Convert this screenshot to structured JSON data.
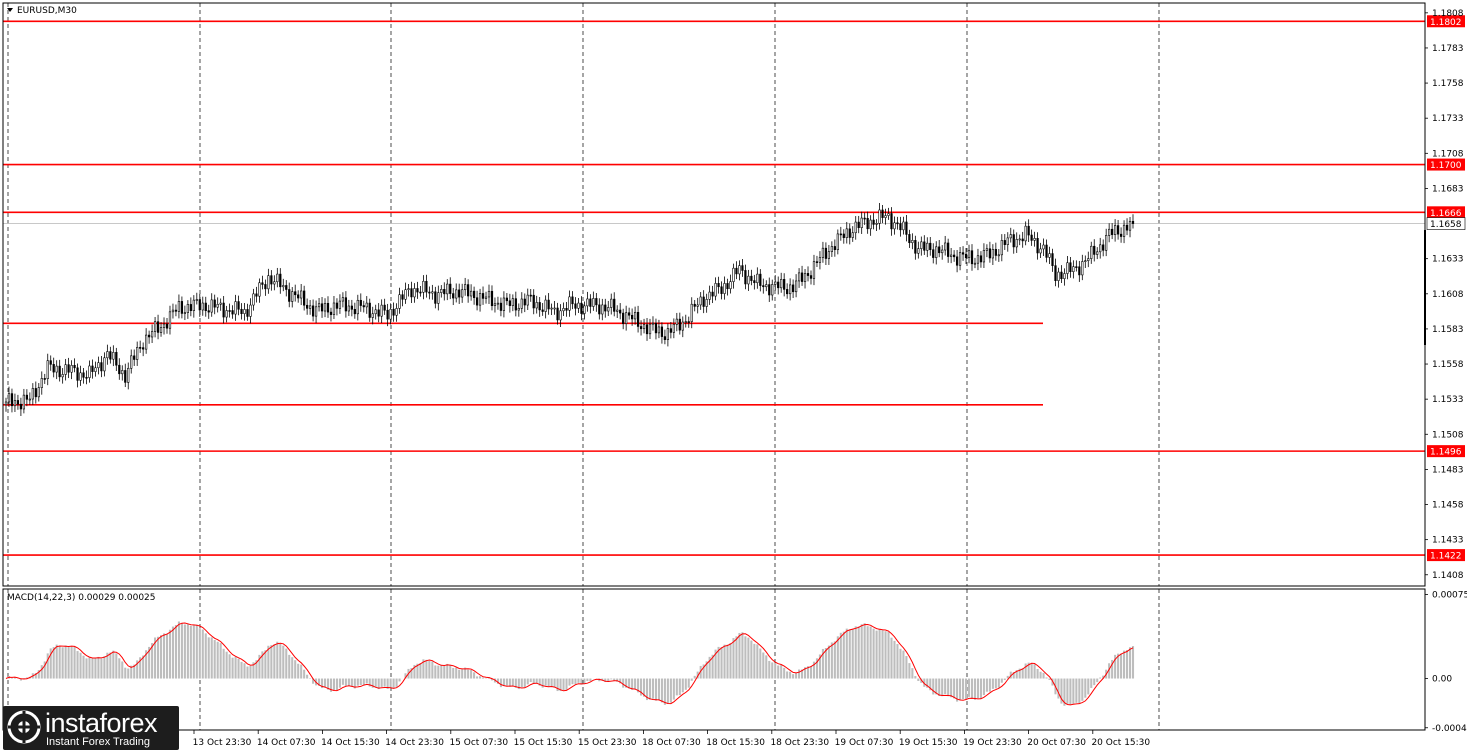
{
  "chart_data": {
    "type": "candlestick",
    "symbol_label": "EURUSD,M30",
    "price_axis": {
      "ticks": [
        "1.1808",
        "1.1783",
        "1.1758",
        "1.1733",
        "1.1708",
        "1.1683",
        "1.1633",
        "1.1608",
        "1.1583",
        "1.1558",
        "1.1533",
        "1.1508",
        "1.1483",
        "1.1458",
        "1.1433",
        "1.1408"
      ],
      "ylim": [
        1.14,
        1.1815
      ]
    },
    "time_axis_labels": [
      "13 Oct 23:30",
      "14 Oct 07:30",
      "14 Oct 15:30",
      "14 Oct 23:30",
      "15 Oct 07:30",
      "15 Oct 15:30",
      "15 Oct 23:30",
      "18 Oct 07:30",
      "18 Oct 15:30",
      "18 Oct 23:30",
      "19 Oct 07:30",
      "19 Oct 15:30",
      "19 Oct 23:30",
      "20 Oct 07:30",
      "20 Oct 15:30"
    ],
    "horizontal_levels": [
      {
        "price": 1.1802,
        "label": "1.1802",
        "full_width": true
      },
      {
        "price": 1.17,
        "label": "1.1700",
        "full_width": true
      },
      {
        "price": 1.1666,
        "label": "1.1666",
        "full_width": true
      },
      {
        "price": 1.1587,
        "label": "",
        "full_width": false
      },
      {
        "price": 1.1529,
        "label": "",
        "full_width": false
      },
      {
        "price": 1.1496,
        "label": "1.1496",
        "full_width": true
      },
      {
        "price": 1.1422,
        "label": "1.1422",
        "full_width": true
      }
    ],
    "current_price": {
      "value": 1.1658,
      "label": "1.1658"
    },
    "close_anchors": [
      [
        0,
        1.1531
      ],
      [
        8,
        1.1532
      ],
      [
        14,
        1.1555
      ],
      [
        22,
        1.1553
      ],
      [
        28,
        1.155
      ],
      [
        34,
        1.1565
      ],
      [
        40,
        1.155
      ],
      [
        46,
        1.1575
      ],
      [
        52,
        1.1585
      ],
      [
        58,
        1.1598
      ],
      [
        66,
        1.16
      ],
      [
        74,
        1.1597
      ],
      [
        80,
        1.1595
      ],
      [
        88,
        1.162
      ],
      [
        96,
        1.1608
      ],
      [
        104,
        1.1596
      ],
      [
        112,
        1.16
      ],
      [
        120,
        1.1598
      ],
      [
        128,
        1.1593
      ],
      [
        136,
        1.1612
      ],
      [
        144,
        1.1608
      ],
      [
        152,
        1.161
      ],
      [
        160,
        1.1605
      ],
      [
        168,
        1.16
      ],
      [
        176,
        1.1603
      ],
      [
        184,
        1.1595
      ],
      [
        190,
        1.16
      ],
      [
        198,
        1.16
      ],
      [
        204,
        1.1597
      ],
      [
        210,
        1.159
      ],
      [
        216,
        1.1583
      ],
      [
        222,
        1.158
      ],
      [
        228,
        1.159
      ],
      [
        234,
        1.1605
      ],
      [
        240,
        1.1612
      ],
      [
        246,
        1.1625
      ],
      [
        252,
        1.1615
      ],
      [
        258,
        1.1613
      ],
      [
        264,
        1.1613
      ],
      [
        270,
        1.1625
      ],
      [
        276,
        1.164
      ],
      [
        284,
        1.1655
      ],
      [
        290,
        1.166
      ],
      [
        296,
        1.1663
      ],
      [
        300,
        1.1655
      ],
      [
        306,
        1.164
      ],
      [
        312,
        1.164
      ],
      [
        318,
        1.1635
      ],
      [
        324,
        1.1633
      ],
      [
        330,
        1.1636
      ],
      [
        336,
        1.1645
      ],
      [
        342,
        1.165
      ],
      [
        348,
        1.164
      ],
      [
        352,
        1.1622
      ],
      [
        358,
        1.1625
      ],
      [
        364,
        1.1635
      ],
      [
        370,
        1.165
      ],
      [
        376,
        1.1656
      ],
      [
        378,
        1.1658
      ]
    ],
    "macd": {
      "label": "MACD(14,22,3) 0.00029 0.00025",
      "params": [
        14,
        22,
        3
      ],
      "main": 0.00029,
      "signal": 0.00025,
      "ylim": [
        -0.00046,
        0.0008
      ],
      "ticks": [
        "0.00075",
        "0.00",
        "-0.00044"
      ],
      "hist_color": "#bdbdbd",
      "signal_color": "#ff0000"
    },
    "colors": {
      "level": "#ff0000",
      "candle": "#000000",
      "grid": "#000000",
      "background": "#ffffff"
    }
  },
  "watermark": {
    "name": "instaforex",
    "tagline": "Instant Forex Trading"
  }
}
